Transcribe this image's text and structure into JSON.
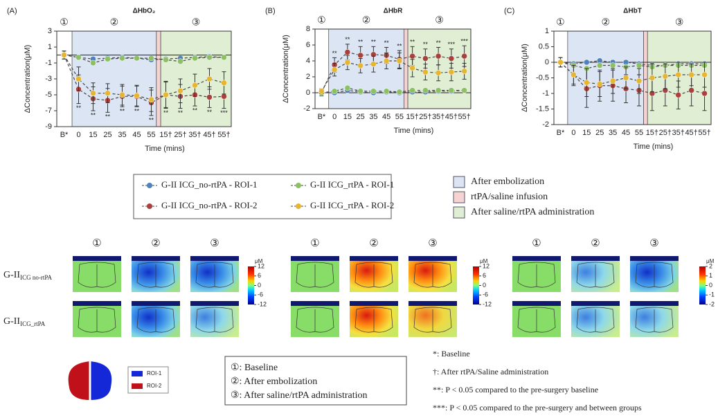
{
  "chart_data": [
    {
      "type": "line",
      "panel": "(A)",
      "title": "ΔHbO₂",
      "ylabel": "ΔConcentration(μM)",
      "xlabel": "Time (mins)",
      "phases": [
        "①",
        "②",
        "③"
      ],
      "categories": [
        "B*",
        "0",
        "15",
        "25",
        "35",
        "45",
        "55",
        "15†",
        "25†",
        "35†",
        "45†",
        "55†"
      ],
      "ylim": [
        -9,
        3
      ],
      "yticks": [
        3,
        1,
        -1,
        -3,
        -5,
        -7,
        -9
      ],
      "series": [
        {
          "name": "G-II ICG_no-rtPA - ROI-1",
          "color": "#4f81bd",
          "values": [
            0,
            -0.3,
            -0.5,
            -0.4,
            -0.3,
            -0.4,
            -0.6,
            -0.5,
            -0.4,
            -0.3,
            -0.2,
            -0.3
          ]
        },
        {
          "name": "G-II ICG_no-rtPA - ROI-2",
          "color": "#a9403c",
          "values": [
            0,
            -4.3,
            -5.5,
            -5.7,
            -5.2,
            -5.2,
            -6,
            -5,
            -5.2,
            -5,
            -5.3,
            -5.2
          ],
          "errors": [
            0.5,
            1.8,
            1.5,
            1.5,
            1.3,
            1.3,
            1.6,
            1.7,
            1.5,
            1.4,
            1.3,
            1.5
          ],
          "sig_labels": [
            null,
            "**",
            "**",
            "**",
            "**",
            "**",
            "**",
            "**",
            "**",
            "**",
            "**",
            "***"
          ]
        },
        {
          "name": "G-II ICG_rtPA - ROI-1",
          "color": "#8cc063",
          "values": [
            0,
            -0.3,
            -1,
            -0.5,
            -0.4,
            -0.4,
            -0.4,
            -0.6,
            -0.8,
            -0.4,
            -0.3,
            -0.3
          ]
        },
        {
          "name": "G-II ICG_rtPA - ROI-2",
          "color": "#e6b532",
          "values": [
            0,
            -3,
            -4.8,
            -4.8,
            -5,
            -5.1,
            -5.6,
            -5,
            -4.5,
            -3.8,
            -3,
            -3.5
          ],
          "errors": [
            0.5,
            1.5,
            1.3,
            1.2,
            1.3,
            1.3,
            1.5,
            1.6,
            1.5,
            1.4,
            1.3,
            1.4
          ]
        }
      ]
    },
    {
      "type": "line",
      "panel": "(B)",
      "title": "ΔHbR",
      "ylabel": "ΔConcentration(μM)",
      "xlabel": "Time (mins)",
      "phases": [
        "①",
        "②",
        "③"
      ],
      "categories": [
        "B*",
        "0",
        "15",
        "25",
        "35",
        "45",
        "55",
        "15†",
        "25†",
        "35†",
        "45†",
        "55†"
      ],
      "ylim": [
        -2,
        8
      ],
      "yticks": [
        8,
        6,
        4,
        2,
        0,
        -2
      ],
      "series": [
        {
          "color": "#4f81bd",
          "values": [
            0,
            0,
            0.3,
            0.1,
            0,
            0.1,
            0,
            0.1,
            0.1,
            0.2,
            0.2,
            0.3
          ]
        },
        {
          "color": "#a9403c",
          "values": [
            0,
            3.5,
            5.1,
            4.7,
            4.8,
            4.7,
            4.2,
            4.6,
            4.3,
            4.6,
            4.3,
            4.6
          ],
          "errors": [
            0.4,
            0.9,
            1,
            1.1,
            1,
            1,
            1.1,
            1.2,
            1.2,
            1.1,
            1.2,
            1.3
          ],
          "sig_labels": [
            null,
            "**",
            "**",
            "**",
            "**",
            "**",
            "**",
            "**",
            "**",
            "**",
            "***",
            "***"
          ]
        },
        {
          "color": "#8cc063",
          "values": [
            0,
            0.2,
            0.6,
            0.2,
            0.2,
            0.2,
            0.1,
            0.3,
            0.3,
            0.3,
            0.3,
            0.3
          ]
        },
        {
          "color": "#e6b532",
          "values": [
            0.2,
            2.9,
            3.8,
            3.4,
            3.6,
            4,
            4,
            3.1,
            2.6,
            2.5,
            2.6,
            2.7
          ],
          "errors": [
            0.3,
            0.8,
            0.9,
            0.9,
            1,
            1,
            1,
            1.1,
            1,
            1,
            1.1,
            1
          ]
        }
      ]
    },
    {
      "type": "line",
      "panel": "(C)",
      "title": "ΔHbT",
      "ylabel": "ΔConcentration(μM)",
      "xlabel": "Time (mins)",
      "phases": [
        "①",
        "②",
        "③"
      ],
      "categories": [
        "B*",
        "0",
        "15",
        "25",
        "35",
        "45",
        "55",
        "15†",
        "25†",
        "35†",
        "45†",
        "55†"
      ],
      "ylim": [
        -2,
        1
      ],
      "yticks": [
        1,
        0.5,
        0,
        -0.5,
        -1,
        -1.5,
        -2
      ],
      "series": [
        {
          "color": "#4f81bd",
          "values": [
            0,
            -0.05,
            0,
            0.05,
            0,
            0,
            -0.05,
            -0.1,
            -0.1,
            -0.05,
            -0.05,
            -0.05
          ]
        },
        {
          "color": "#a9403c",
          "values": [
            0,
            -0.4,
            -0.85,
            -0.75,
            -0.75,
            -0.85,
            -0.9,
            -1,
            -0.9,
            -1.05,
            -0.9,
            -1
          ],
          "errors": [
            0.15,
            0.35,
            0.6,
            0.5,
            0.5,
            0.45,
            0.5,
            0.55,
            0.5,
            0.45,
            0.5,
            0.55
          ]
        },
        {
          "color": "#8cc063",
          "values": [
            0,
            -0.1,
            -0.2,
            -0.1,
            -0.1,
            -0.15,
            -0.1,
            -0.15,
            -0.1,
            -0.1,
            -0.1,
            -0.1
          ]
        },
        {
          "color": "#e6b532",
          "values": [
            0,
            -0.4,
            -0.65,
            -0.7,
            -0.6,
            -0.5,
            -0.6,
            -0.5,
            -0.45,
            -0.4,
            -0.4,
            -0.4
          ],
          "errors": [
            0.15,
            0.3,
            0.45,
            0.4,
            0.4,
            0.35,
            0.4,
            0.45,
            0.4,
            0.4,
            0.35,
            0.4
          ]
        }
      ]
    }
  ],
  "regions": [
    {
      "label": "After embolization",
      "color": "#dbe5f3"
    },
    {
      "label": "rtPA/saline infusion",
      "color": "#f6d3d3"
    },
    {
      "label": "After saline/rtPA administration",
      "color": "#e0eed3"
    }
  ],
  "heatmaps": {
    "columns": [
      "①",
      "②",
      "③",
      "①",
      "②",
      "③",
      "①",
      "②",
      "③"
    ],
    "rows": [
      {
        "main": "G-II",
        "sub": "ICG no-rtPA"
      },
      {
        "main": "G-II",
        "sub": "ICG_rtPA"
      }
    ],
    "colorbars": [
      {
        "unit": "μM",
        "ticks": [
          12,
          6,
          0,
          -6,
          -12
        ]
      },
      {
        "unit": "μM",
        "ticks": [
          12,
          6,
          0,
          -6,
          -12
        ]
      },
      {
        "unit": "μM",
        "ticks": [
          2,
          1,
          0,
          -1,
          -2
        ]
      }
    ]
  },
  "roi_legend": [
    "ROI-1",
    "ROI-2"
  ],
  "phase_key": [
    "①: Baseline",
    "②: After embolization",
    "③: After saline/rtPA administration"
  ],
  "notes": [
    "*: Baseline",
    "†: After rtPA/Saline administration",
    "**: P < 0.05 compared to the pre-surgery baseline",
    "***: P < 0.05 compared to the pre-surgery and between groups"
  ]
}
